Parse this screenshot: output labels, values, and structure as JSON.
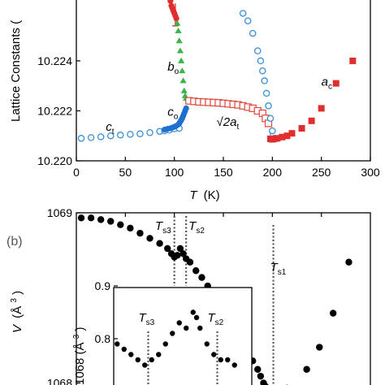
{
  "chart_data": [
    {
      "type": "scatter",
      "panel": "a",
      "ylabel": "Lattice Constants (",
      "xlabel_symbol": "T",
      "xlabel_unit": "(K)",
      "xlim": [
        0,
        300
      ],
      "ylim": [
        10.22,
        10.2265
      ],
      "x_ticks": [
        0,
        50,
        100,
        150,
        200,
        250,
        300
      ],
      "y_ticks": [
        "10.220",
        "10.222",
        "10.224"
      ],
      "y_tick_values": [
        10.22,
        10.222,
        10.224
      ],
      "annotations": [
        {
          "main": "c",
          "sub": "t",
          "x": 30,
          "y": 10.2212
        },
        {
          "main": "b",
          "sub": "o",
          "x": 93,
          "y": 10.2236
        },
        {
          "main": "c",
          "sub": "o",
          "x": 93,
          "y": 10.2218
        },
        {
          "main": "√2a",
          "sub": "t",
          "x": 143,
          "y": 10.2214
        },
        {
          "main": "a",
          "sub": "c",
          "x": 250,
          "y": 10.223
        }
      ],
      "series": [
        {
          "label": "c_t",
          "marker": "circle-open",
          "color": "#3a8fd6",
          "x": [
            5,
            15,
            25,
            35,
            45,
            55,
            65,
            75,
            85,
            90,
            95,
            100,
            105
          ],
          "y": [
            10.2209,
            10.22093,
            10.22096,
            10.221,
            10.22103,
            10.22106,
            10.22108,
            10.22113,
            10.22118,
            10.2212,
            10.22123,
            10.22128,
            10.2213
          ]
        },
        {
          "label": "c_o",
          "marker": "circle-filled",
          "color": "#1f6fd1",
          "x": [
            90,
            93,
            96,
            98,
            100,
            102,
            104,
            105,
            106,
            107,
            108,
            109,
            110,
            111,
            112
          ],
          "y": [
            10.22125,
            10.22128,
            10.2213,
            10.22133,
            10.22136,
            10.2214,
            10.22145,
            10.2215,
            10.22156,
            10.22163,
            10.2217,
            10.2218,
            10.2219,
            10.222,
            10.2221
          ]
        },
        {
          "label": "b_o",
          "marker": "triangle-filled",
          "color": "#3cb44b",
          "x": [
            103,
            104,
            105,
            106,
            107,
            108,
            109,
            110,
            111,
            112
          ],
          "y": [
            10.2255,
            10.2252,
            10.2248,
            10.2244,
            10.224,
            10.2236,
            10.2232,
            10.2228,
            10.2226,
            10.2225
          ]
        },
        {
          "label": "b_o_top",
          "marker": "circle-filled",
          "color": "#e02d2d",
          "x": [
            95,
            96,
            97,
            98,
            99,
            100,
            101,
            102
          ],
          "y": [
            10.2266,
            10.2264,
            10.2262,
            10.2261,
            10.226,
            10.2259,
            10.2258,
            10.2257
          ]
        },
        {
          "label": "√2a_t",
          "marker": "square-open",
          "color": "#e0473a",
          "x": [
            115,
            120,
            125,
            130,
            135,
            140,
            145,
            150,
            155,
            160,
            165,
            170,
            175,
            180,
            185,
            190,
            193,
            196
          ],
          "y": [
            10.2224,
            10.22238,
            10.22236,
            10.22235,
            10.22234,
            10.22233,
            10.22232,
            10.2223,
            10.22228,
            10.22226,
            10.22224,
            10.2222,
            10.22215,
            10.2221,
            10.222,
            10.2219,
            10.2217,
            10.2215
          ]
        },
        {
          "label": "a_t_high",
          "marker": "circle-open",
          "color": "#3a8fd6",
          "x": [
            170,
            175,
            180,
            185,
            188,
            190,
            192,
            194,
            196,
            198,
            200,
            202
          ],
          "y": [
            10.2259,
            10.2256,
            10.2251,
            10.2244,
            10.224,
            10.2236,
            10.2232,
            10.2227,
            10.2222,
            10.2217,
            10.2212,
            10.2209
          ]
        },
        {
          "label": "a_c",
          "marker": "square-filled",
          "color": "#e02d2d",
          "x": [
            198,
            200,
            202,
            205,
            210,
            215,
            220,
            230,
            240,
            250,
            265,
            282
          ],
          "y": [
            10.22088,
            10.22086,
            10.22088,
            10.2209,
            10.22095,
            10.221,
            10.2211,
            10.2213,
            10.2216,
            10.2221,
            10.2231,
            10.224
          ]
        }
      ]
    },
    {
      "type": "scatter",
      "panel": "b",
      "panel_label": "(b)",
      "ylabel_symbol": "V",
      "ylabel_unit": "(Å",
      "ylabel_exp": "3",
      "ylabel_close": ")",
      "xlim": [
        0,
        300
      ],
      "ylim": [
        1067.95,
        1069.0
      ],
      "y_ticks": [
        "1069",
        "1068"
      ],
      "y_tick_values": [
        1069.0,
        1068.0
      ],
      "transitions": [
        {
          "main": "T",
          "sub": "s3",
          "x": 100
        },
        {
          "main": "T",
          "sub": "s2",
          "x": 112
        },
        {
          "main": "T",
          "sub": "s1",
          "x": 201
        }
      ],
      "series": [
        {
          "label": "V",
          "marker": "circle-filled",
          "color": "#000000",
          "x": [
            5,
            15,
            25,
            35,
            45,
            55,
            65,
            75,
            85,
            93,
            97,
            100,
            103,
            106,
            109,
            112,
            116,
            122,
            128,
            134,
            140,
            146,
            152,
            158,
            164,
            170,
            175,
            180,
            185,
            188,
            191,
            193,
            195,
            197,
            199,
            201,
            205,
            215,
            235,
            248,
            262,
            278
          ],
          "y": [
            1068.97,
            1068.97,
            1068.96,
            1068.95,
            1068.93,
            1068.91,
            1068.88,
            1068.85,
            1068.82,
            1068.79,
            1068.76,
            1068.74,
            1068.75,
            1068.79,
            1068.76,
            1068.73,
            1068.71,
            1068.66,
            1068.62,
            1068.57,
            1068.52,
            1068.47,
            1068.42,
            1068.36,
            1068.3,
            1068.24,
            1068.18,
            1068.13,
            1068.08,
            1068.04,
            1068.0,
            1067.98,
            1067.96,
            1067.95,
            1067.95,
            1067.95,
            1067.95,
            1067.97,
            1068.08,
            1068.21,
            1068.41,
            1068.71
          ]
        }
      ],
      "inset": {
        "ylabel": "1068 (Å",
        "ylabel_exp": "3",
        "ylabel_close": ")",
        "y_ticks": [
          "0.9",
          "0.8"
        ],
        "y_tick_values": [
          0.9,
          0.8
        ],
        "xlim": [
          60,
          140
        ],
        "ylim": [
          0.7,
          0.9
        ],
        "transitions": [
          {
            "main": "T",
            "sub": "s3",
            "x": 80
          },
          {
            "main": "T",
            "sub": "s2",
            "x": 120
          }
        ],
        "x": [
          62,
          66,
          70,
          74,
          78,
          82,
          86,
          90,
          94,
          98,
          102,
          106,
          108,
          110,
          114,
          118,
          122,
          126,
          130
        ],
        "y": [
          0.79,
          0.78,
          0.77,
          0.76,
          0.75,
          0.76,
          0.77,
          0.79,
          0.81,
          0.83,
          0.82,
          0.85,
          0.84,
          0.82,
          0.79,
          0.77,
          0.76,
          0.76,
          0.75
        ]
      }
    }
  ]
}
